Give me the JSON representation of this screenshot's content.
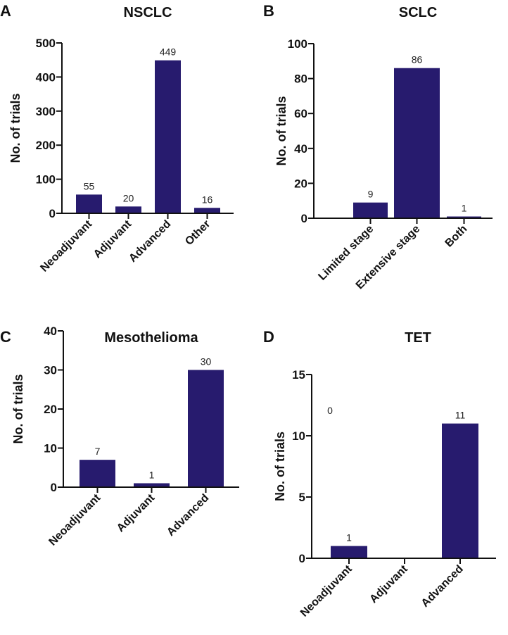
{
  "bar_color": "#271b6e",
  "chart_data": [
    {
      "type": "bar",
      "panel": "A",
      "title": "NSCLC",
      "ylabel": "No. of trials",
      "ylim": [
        0,
        500
      ],
      "yticks": [
        0,
        100,
        200,
        300,
        400,
        500
      ],
      "categories": [
        "Neoadjuvant",
        "Adjuvant",
        "Advanced",
        "Other"
      ],
      "values": [
        55,
        20,
        449,
        16
      ],
      "data_labels": [
        "55",
        "20",
        "449",
        "16"
      ]
    },
    {
      "type": "bar",
      "panel": "B",
      "title": "SCLC",
      "ylabel": "No. of trials",
      "ylim": [
        0,
        100
      ],
      "yticks": [
        0,
        20,
        40,
        60,
        80,
        100
      ],
      "categories": [
        "Limited stage",
        "Extensive stage",
        "Both"
      ],
      "values": [
        9,
        86,
        1
      ],
      "data_labels": [
        "9",
        "86",
        "1"
      ]
    },
    {
      "type": "bar",
      "panel": "C",
      "title": "Mesothelioma",
      "ylabel": "No. of trials",
      "ylim": [
        0,
        40
      ],
      "yticks": [
        0,
        10,
        20,
        30,
        40
      ],
      "categories": [
        "Neoadjuvant",
        "Adjuvant",
        "Advanced"
      ],
      "values": [
        7,
        1,
        30
      ],
      "data_labels": [
        "7",
        "1",
        "30"
      ]
    },
    {
      "type": "bar",
      "panel": "D",
      "title": "TET",
      "ylabel": "No. of trials",
      "ylim": [
        0,
        15
      ],
      "yticks": [
        0,
        5,
        10,
        15
      ],
      "categories": [
        "Neoadjuvant",
        "Adjuvant",
        "Advanced"
      ],
      "values": [
        1,
        0,
        11
      ],
      "data_labels": [
        "1",
        "",
        "11"
      ],
      "annotations": [
        "0"
      ]
    }
  ]
}
